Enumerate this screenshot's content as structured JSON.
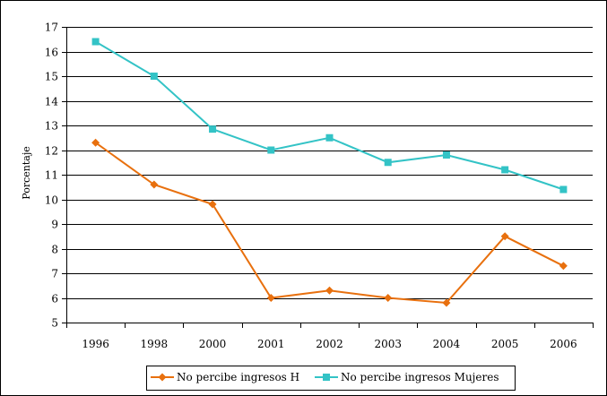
{
  "chart_data": {
    "type": "line",
    "title": "",
    "xlabel": "",
    "ylabel": "Porcentaje",
    "ylim": [
      5,
      17
    ],
    "yticks": [
      5,
      6,
      7,
      8,
      9,
      10,
      11,
      12,
      13,
      14,
      15,
      16,
      17
    ],
    "grid": true,
    "legend_position": "bottom",
    "categories": [
      "1996",
      "1998",
      "2000",
      "2001",
      "2002",
      "2003",
      "2004",
      "2005",
      "2006"
    ],
    "series": [
      {
        "name": "No percibe ingresos H",
        "color": "#E8700E",
        "marker": "diamond",
        "values": [
          12.3,
          10.6,
          9.8,
          6.0,
          6.3,
          6.0,
          5.8,
          8.5,
          7.3
        ]
      },
      {
        "name": "No percibe ingresos Mujeres",
        "color": "#33C3C6",
        "marker": "square",
        "values": [
          16.4,
          15.0,
          12.85,
          12.0,
          12.5,
          11.5,
          11.8,
          11.2,
          10.4
        ]
      }
    ]
  }
}
